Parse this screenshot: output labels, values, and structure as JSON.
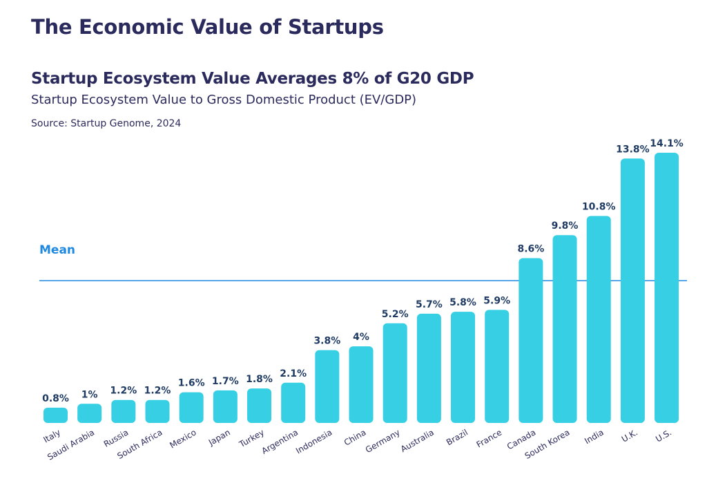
{
  "page": {
    "title": "The Economic Value of Startups"
  },
  "chart_data": {
    "type": "bar",
    "title": "Startup Ecosystem Value Averages 8% of G20 GDP",
    "subtitle": "Startup Ecosystem Value to Gross Domestic Product (EV/GDP)",
    "source": "Source: Startup Genome, 2024",
    "xlabel": "",
    "ylabel": "",
    "ylim": [
      0,
      14.1
    ],
    "grid": false,
    "legend": "none",
    "categories": [
      "Italy",
      "Saudi Arabia",
      "Russia",
      "South Africa",
      "Mexico",
      "Japan",
      "Turkey",
      "Argentina",
      "Indonesia",
      "China",
      "Germany",
      "Australia",
      "Brazil",
      "France",
      "Canada",
      "South Korea",
      "India",
      "U.K.",
      "U.S."
    ],
    "values": [
      0.8,
      1,
      1.2,
      1.2,
      1.6,
      1.7,
      1.8,
      2.1,
      3.8,
      4,
      5.2,
      5.7,
      5.8,
      5.9,
      8.6,
      9.8,
      10.8,
      13.8,
      14.1
    ],
    "value_labels": [
      "0.8%",
      "1%",
      "1.2%",
      "1.2%",
      "1.6%",
      "1.7%",
      "1.8%",
      "2.1%",
      "3.8%",
      "4%",
      "5.2%",
      "5.7%",
      "5.8%",
      "5.9%",
      "8.6%",
      "9.8%",
      "10.8%",
      "13.8%",
      "14.1%"
    ],
    "mean_line": {
      "label": "Mean",
      "value": 8
    },
    "colors": {
      "bar": "#36cfe4",
      "mean_line": "#1f88e0",
      "value_label": "#1f3b63",
      "title": "#2b2a5c"
    }
  }
}
